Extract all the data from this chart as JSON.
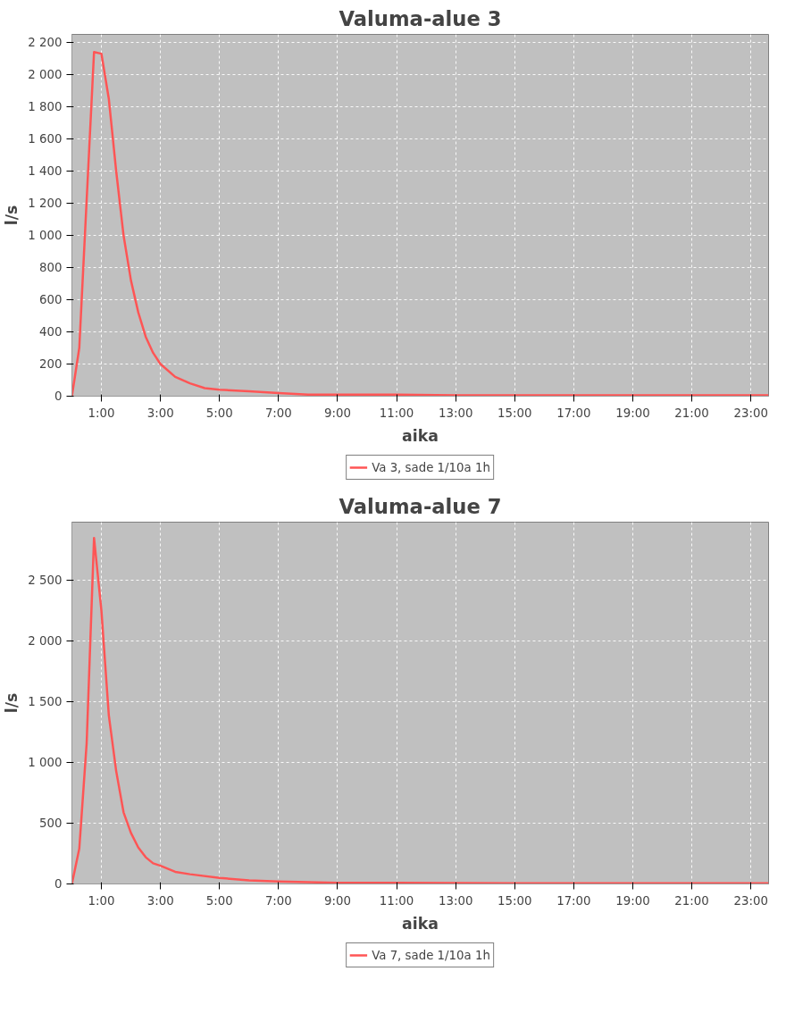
{
  "chart_data": [
    {
      "type": "line",
      "title": "Valuma-alue 3",
      "xlabel": "aika",
      "ylabel": "l/s",
      "x": [
        0,
        0.25,
        0.5,
        0.75,
        1.0,
        1.25,
        1.5,
        1.75,
        2.0,
        2.25,
        2.5,
        2.75,
        3.0,
        3.5,
        4.0,
        4.5,
        5.0,
        6.0,
        7.0,
        8.0,
        9.0,
        11.0,
        13.0,
        15.0,
        19.0,
        23.6
      ],
      "series": [
        {
          "name": "Va 3, sade 1/10a 1h",
          "color": "#ff5555",
          "values": [
            0,
            300,
            1220,
            2140,
            2130,
            1850,
            1400,
            1000,
            720,
            520,
            370,
            270,
            200,
            120,
            80,
            50,
            40,
            30,
            20,
            10,
            10,
            10,
            5,
            5,
            5,
            5
          ]
        }
      ],
      "xlim": [
        0,
        23.6
      ],
      "xticks": [
        {
          "value": 1,
          "label": "1:00"
        },
        {
          "value": 3,
          "label": "3:00"
        },
        {
          "value": 5,
          "label": "5:00"
        },
        {
          "value": 7,
          "label": "7:00"
        },
        {
          "value": 9,
          "label": "9:00"
        },
        {
          "value": 11,
          "label": "11:00"
        },
        {
          "value": 13,
          "label": "13:00"
        },
        {
          "value": 15,
          "label": "15:00"
        },
        {
          "value": 17,
          "label": "17:00"
        },
        {
          "value": 19,
          "label": "19:00"
        },
        {
          "value": 21,
          "label": "21:00"
        },
        {
          "value": 23,
          "label": "23:00"
        }
      ],
      "ylim": [
        0,
        2250
      ],
      "yticks": [
        0,
        200,
        400,
        600,
        800,
        {
          "value": 1000,
          "label": "1 000"
        },
        {
          "value": 1200,
          "label": "1 200"
        },
        {
          "value": 1400,
          "label": "1 400"
        },
        {
          "value": 1600,
          "label": "1 600"
        },
        {
          "value": 1800,
          "label": "1 800"
        },
        {
          "value": 2000,
          "label": "2 000"
        },
        {
          "value": 2200,
          "label": "2 200"
        }
      ],
      "grid": true,
      "legend": "bottom",
      "line_style": "solid"
    },
    {
      "type": "line",
      "title": "Valuma-alue 7",
      "xlabel": "aika",
      "ylabel": "l/s",
      "x": [
        0,
        0.25,
        0.5,
        0.75,
        1.0,
        1.25,
        1.5,
        1.75,
        2.0,
        2.25,
        2.5,
        2.75,
        3.0,
        3.5,
        4.0,
        5.0,
        6.0,
        7.0,
        9.0,
        11.0,
        15.0,
        23.6
      ],
      "series": [
        {
          "name": "Va 7, sade 1/10a 1h",
          "color": "#ff5555",
          "values": [
            0,
            290,
            1160,
            2850,
            2250,
            1390,
            930,
            590,
            420,
            300,
            220,
            170,
            150,
            100,
            80,
            50,
            30,
            20,
            10,
            10,
            5,
            5
          ]
        }
      ],
      "xlim": [
        0,
        23.6
      ],
      "xticks": [
        {
          "value": 1,
          "label": "1:00"
        },
        {
          "value": 3,
          "label": "3:00"
        },
        {
          "value": 5,
          "label": "5:00"
        },
        {
          "value": 7,
          "label": "7:00"
        },
        {
          "value": 9,
          "label": "9:00"
        },
        {
          "value": 11,
          "label": "11:00"
        },
        {
          "value": 13,
          "label": "13:00"
        },
        {
          "value": 15,
          "label": "15:00"
        },
        {
          "value": 17,
          "label": "17:00"
        },
        {
          "value": 19,
          "label": "19:00"
        },
        {
          "value": 21,
          "label": "21:00"
        },
        {
          "value": 23,
          "label": "23:00"
        }
      ],
      "ylim": [
        0,
        2980
      ],
      "yticks": [
        0,
        500,
        {
          "value": 1000,
          "label": "1 000"
        },
        {
          "value": 1500,
          "label": "1 500"
        },
        {
          "value": 2000,
          "label": "2 000"
        },
        {
          "value": 2500,
          "label": "2 500"
        }
      ],
      "grid": true,
      "legend": "bottom",
      "line_style": "solid"
    }
  ]
}
